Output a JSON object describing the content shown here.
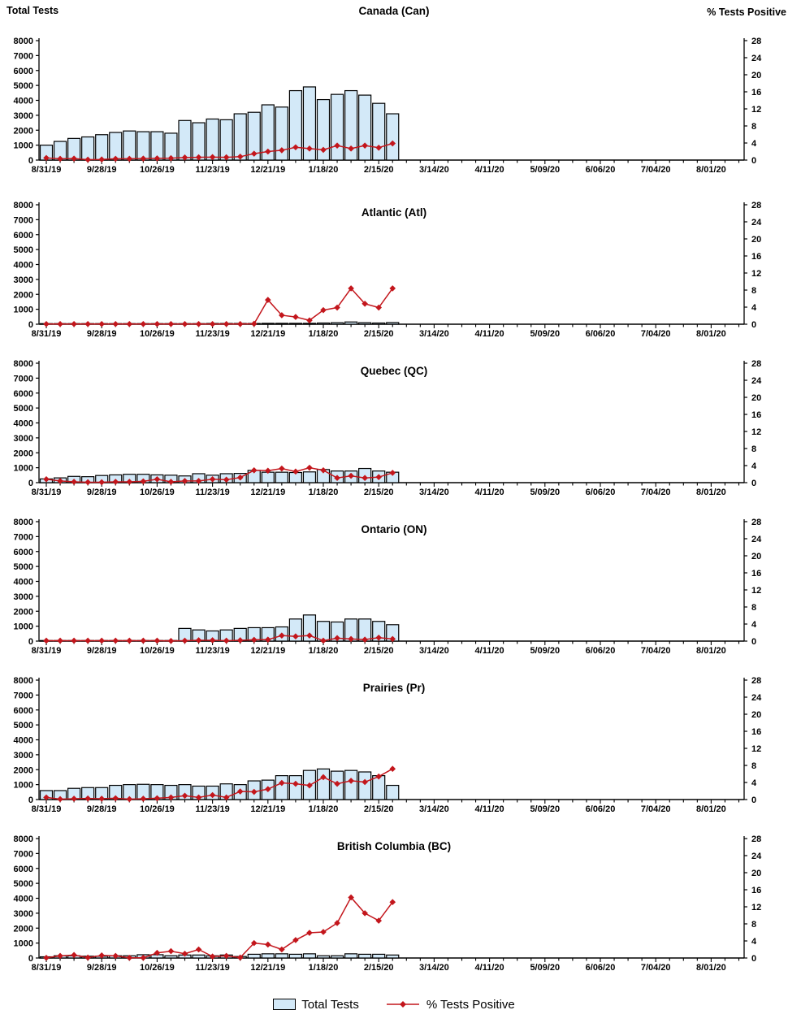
{
  "axes": {
    "left": {
      "title": "Total Tests",
      "range": [
        0,
        8000
      ],
      "ticks": [
        0,
        1000,
        2000,
        3000,
        4000,
        5000,
        6000,
        7000,
        8000
      ]
    },
    "right": {
      "title": "% Tests Positive",
      "range": [
        0,
        28
      ],
      "ticks": [
        0,
        4,
        8,
        12,
        16,
        20,
        24,
        28
      ]
    },
    "x": {
      "tick_labels": [
        "8/31/19",
        "9/28/19",
        "10/26/19",
        "11/23/19",
        "12/21/19",
        "1/18/20",
        "2/15/20",
        "3/14/20",
        "4/11/20",
        "5/09/20",
        "6/06/20",
        "7/04/20",
        "8/01/20"
      ],
      "minor_tick_interval": "1 week",
      "label_interval": "4 weeks"
    }
  },
  "colors": {
    "bar_fill": "#d3e9f8",
    "bar_border": "#000000",
    "line": "#c3161c",
    "axis": "#000000",
    "text": "#000000"
  },
  "legend": {
    "items": [
      {
        "label": "Total Tests",
        "marker": "bar-swatch"
      },
      {
        "label": "% Tests Positive",
        "marker": "line-diamond"
      }
    ]
  },
  "chart_data": [
    {
      "type": "combo-bar-line",
      "title": "Canada (Can)",
      "left_ylim": [
        0,
        8000
      ],
      "right_ylim": [
        0,
        28
      ],
      "categories": [
        "8/31/19",
        "9/7/19",
        "9/14/19",
        "9/21/19",
        "9/28/19",
        "10/5/19",
        "10/12/19",
        "10/19/19",
        "10/26/19",
        "11/2/19",
        "11/9/19",
        "11/16/19",
        "11/23/19",
        "11/30/19",
        "12/7/19",
        "12/14/19",
        "12/21/19",
        "12/28/19",
        "1/4/20",
        "1/11/20",
        "1/18/20",
        "1/25/20",
        "2/1/20",
        "2/8/20",
        "2/15/20",
        "2/22/20"
      ],
      "series": [
        {
          "name": "Total Tests",
          "type": "bar",
          "axis": "left",
          "values": [
            1000,
            1250,
            1450,
            1550,
            1700,
            1850,
            1950,
            1900,
            1900,
            1800,
            2650,
            2500,
            2750,
            2700,
            3100,
            3200,
            3700,
            3550,
            4650,
            4900,
            4050,
            4400,
            4650,
            4350,
            3800,
            3100
          ]
        },
        {
          "name": "% Tests Positive",
          "type": "line",
          "axis": "right",
          "values": [
            0.5,
            0.3,
            0.35,
            0.1,
            0.15,
            0.3,
            0.3,
            0.35,
            0.4,
            0.45,
            0.6,
            0.65,
            0.7,
            0.65,
            0.8,
            1.5,
            2.0,
            2.3,
            3.0,
            2.7,
            2.4,
            3.4,
            2.7,
            3.4,
            2.9,
            3.9
          ]
        }
      ]
    },
    {
      "type": "combo-bar-line",
      "title": "Atlantic (Atl)",
      "left_ylim": [
        0,
        8000
      ],
      "right_ylim": [
        0,
        28
      ],
      "categories": [
        "8/31/19",
        "9/7/19",
        "9/14/19",
        "9/21/19",
        "9/28/19",
        "10/5/19",
        "10/12/19",
        "10/19/19",
        "10/26/19",
        "11/2/19",
        "11/9/19",
        "11/16/19",
        "11/23/19",
        "11/30/19",
        "12/7/19",
        "12/14/19",
        "12/21/19",
        "12/28/19",
        "1/4/20",
        "1/11/20",
        "1/18/20",
        "1/25/20",
        "2/1/20",
        "2/8/20",
        "2/15/20",
        "2/22/20"
      ],
      "series": [
        {
          "name": "Total Tests",
          "type": "bar",
          "axis": "left",
          "values": [
            40,
            40,
            40,
            40,
            40,
            40,
            40,
            40,
            40,
            40,
            40,
            40,
            50,
            50,
            50,
            50,
            60,
            60,
            60,
            60,
            80,
            100,
            150,
            100,
            80,
            110
          ]
        },
        {
          "name": "% Tests Positive",
          "type": "line",
          "axis": "right",
          "values": [
            0.05,
            0.05,
            0.05,
            0.05,
            0.05,
            0.05,
            0.05,
            0.05,
            0.05,
            0.05,
            0.05,
            0.05,
            0.05,
            0.05,
            0.05,
            0.1,
            5.7,
            2.1,
            1.7,
            0.9,
            3.3,
            3.9,
            8.4,
            4.8,
            3.9,
            8.4
          ]
        }
      ]
    },
    {
      "type": "combo-bar-line",
      "title": "Quebec (QC)",
      "left_ylim": [
        0,
        8000
      ],
      "right_ylim": [
        0,
        28
      ],
      "categories": [
        "8/31/19",
        "9/7/19",
        "9/14/19",
        "9/21/19",
        "9/28/19",
        "10/5/19",
        "10/12/19",
        "10/19/19",
        "10/26/19",
        "11/2/19",
        "11/9/19",
        "11/16/19",
        "11/23/19",
        "11/30/19",
        "12/7/19",
        "12/14/19",
        "12/21/19",
        "12/28/19",
        "1/4/20",
        "1/11/20",
        "1/18/20",
        "1/25/20",
        "2/1/20",
        "2/8/20",
        "2/15/20",
        "2/22/20"
      ],
      "series": [
        {
          "name": "Total Tests",
          "type": "bar",
          "axis": "left",
          "values": [
            250,
            320,
            420,
            400,
            480,
            520,
            560,
            560,
            520,
            500,
            450,
            600,
            500,
            600,
            620,
            820,
            700,
            700,
            680,
            720,
            880,
            780,
            780,
            950,
            780,
            700
          ]
        },
        {
          "name": "% Tests Positive",
          "type": "line",
          "axis": "right",
          "values": [
            0.8,
            0.4,
            0.2,
            0.1,
            0.1,
            0.2,
            0.2,
            0.3,
            0.8,
            0.2,
            0.4,
            0.4,
            0.8,
            0.7,
            1.2,
            2.9,
            2.8,
            3.3,
            2.6,
            3.5,
            2.9,
            1.1,
            1.6,
            1.1,
            1.3,
            2.3
          ]
        }
      ]
    },
    {
      "type": "combo-bar-line",
      "title": "Ontario (ON)",
      "left_ylim": [
        0,
        8000
      ],
      "right_ylim": [
        0,
        28
      ],
      "categories": [
        "8/31/19",
        "9/7/19",
        "9/14/19",
        "9/21/19",
        "9/28/19",
        "10/5/19",
        "10/12/19",
        "10/19/19",
        "10/26/19",
        "11/2/19",
        "11/9/19",
        "11/16/19",
        "11/23/19",
        "11/30/19",
        "12/7/19",
        "12/14/19",
        "12/21/19",
        "12/28/19",
        "1/4/20",
        "1/11/20",
        "1/18/20",
        "1/25/20",
        "2/1/20",
        "2/8/20",
        "2/15/20",
        "2/22/20"
      ],
      "series": [
        {
          "name": "Total Tests",
          "type": "bar",
          "axis": "left",
          "values": [
            40,
            40,
            40,
            40,
            40,
            40,
            40,
            40,
            40,
            40,
            850,
            750,
            680,
            750,
            850,
            900,
            900,
            950,
            1480,
            1750,
            1320,
            1280,
            1480,
            1480,
            1320,
            1100
          ]
        },
        {
          "name": "% Tests Positive",
          "type": "line",
          "axis": "right",
          "values": [
            0.1,
            0.1,
            0.1,
            0.1,
            0.1,
            0.1,
            0.1,
            0.1,
            0.1,
            0.05,
            0.1,
            0.2,
            0.2,
            0.1,
            0.2,
            0.3,
            0.35,
            1.3,
            1.1,
            1.3,
            0.1,
            0.7,
            0.5,
            0.35,
            0.8,
            0.5
          ]
        }
      ]
    },
    {
      "type": "combo-bar-line",
      "title": "Prairies (Pr)",
      "left_ylim": [
        0,
        8000
      ],
      "right_ylim": [
        0,
        28
      ],
      "categories": [
        "8/31/19",
        "9/7/19",
        "9/14/19",
        "9/21/19",
        "9/28/19",
        "10/5/19",
        "10/12/19",
        "10/19/19",
        "10/26/19",
        "11/2/19",
        "11/9/19",
        "11/16/19",
        "11/23/19",
        "11/30/19",
        "12/7/19",
        "12/14/19",
        "12/21/19",
        "12/28/19",
        "1/4/20",
        "1/11/20",
        "1/18/20",
        "1/25/20",
        "2/1/20",
        "2/8/20",
        "2/15/20",
        "2/22/20"
      ],
      "series": [
        {
          "name": "Total Tests",
          "type": "bar",
          "axis": "left",
          "values": [
            600,
            600,
            750,
            800,
            800,
            950,
            1000,
            1020,
            1000,
            950,
            1000,
            900,
            900,
            1050,
            1000,
            1250,
            1300,
            1600,
            1600,
            1950,
            2050,
            1900,
            1950,
            1850,
            1600,
            950
          ]
        },
        {
          "name": "% Tests Positive",
          "type": "line",
          "axis": "right",
          "values": [
            0.5,
            0.1,
            0.2,
            0.25,
            0.2,
            0.3,
            0.1,
            0.2,
            0.3,
            0.5,
            0.9,
            0.5,
            1.05,
            0.5,
            1.9,
            1.8,
            2.45,
            3.9,
            3.7,
            3.3,
            5.25,
            3.7,
            4.4,
            4.1,
            5.4,
            7.2
          ]
        }
      ]
    },
    {
      "type": "combo-bar-line",
      "title": "British Columbia (BC)",
      "left_ylim": [
        0,
        8000
      ],
      "right_ylim": [
        0,
        28
      ],
      "categories": [
        "8/31/19",
        "9/7/19",
        "9/14/19",
        "9/21/19",
        "9/28/19",
        "10/5/19",
        "10/12/19",
        "10/19/19",
        "10/26/19",
        "11/2/19",
        "11/9/19",
        "11/16/19",
        "11/23/19",
        "11/30/19",
        "12/7/19",
        "12/14/19",
        "12/21/19",
        "12/28/19",
        "1/4/20",
        "1/11/20",
        "1/18/20",
        "1/25/20",
        "2/1/20",
        "2/8/20",
        "2/15/20",
        "2/22/20"
      ],
      "series": [
        {
          "name": "Total Tests",
          "type": "bar",
          "axis": "left",
          "values": [
            80,
            150,
            150,
            120,
            120,
            150,
            150,
            220,
            220,
            150,
            200,
            200,
            150,
            200,
            100,
            250,
            280,
            280,
            250,
            280,
            150,
            150,
            280,
            250,
            250,
            200
          ]
        },
        {
          "name": "% Tests Positive",
          "type": "line",
          "axis": "right",
          "values": [
            0.05,
            0.5,
            0.7,
            0.1,
            0.6,
            0.5,
            0.05,
            0.05,
            1.2,
            1.6,
            1.0,
            2.0,
            0.35,
            0.5,
            0.1,
            3.5,
            3.15,
            2.0,
            4.2,
            5.9,
            6.1,
            8.2,
            14.2,
            10.5,
            8.75,
            13.1
          ]
        }
      ]
    }
  ]
}
